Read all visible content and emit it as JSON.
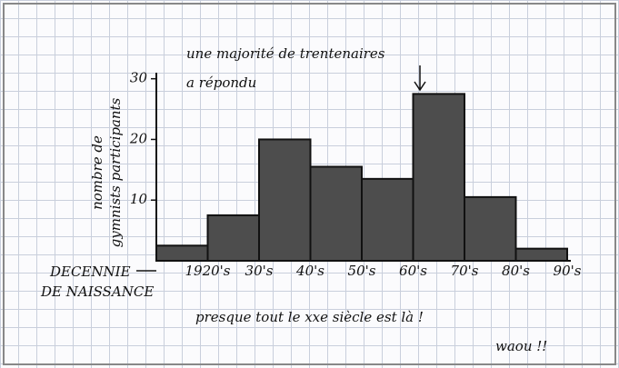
{
  "chart_data": {
    "type": "bar",
    "annotation": [
      "une majorité de trentenaires",
      "a répondu"
    ],
    "y_label": [
      "nombre de",
      "gymnists participants"
    ],
    "x_label": [
      "DECENNIE",
      "DE NAISSANCE"
    ],
    "categories": [
      "1920's",
      "30's",
      "40's",
      "50's",
      "60's",
      "70's",
      "80's",
      "90's"
    ],
    "values": [
      2.5,
      7.5,
      20,
      15.5,
      13.5,
      27.5,
      10.5,
      2
    ],
    "color": "#4d4d4d",
    "ylim": [
      0,
      31
    ],
    "yticks": [
      10,
      20,
      30
    ],
    "notes": [
      "presque tout le xxe siècle est là !",
      "waou !!"
    ]
  }
}
